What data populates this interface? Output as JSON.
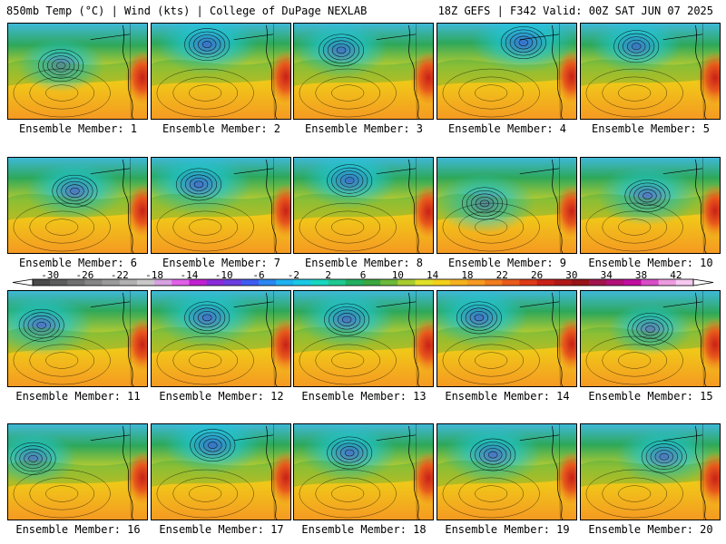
{
  "header": {
    "left": "850mb Temp (°C) | Wind (kts) | College of DuPage NEXLAB",
    "right": "18Z GEFS | F342 Valid: 00Z SAT JUN 07 2025"
  },
  "panels": [
    {
      "label": "Ensemble Member: 1",
      "low": [
        0.38,
        0.44
      ],
      "warm": 0.55,
      "cold": 0.3
    },
    {
      "label": "Ensemble Member: 2",
      "low": [
        0.4,
        0.22
      ],
      "warm": 0.5,
      "cold": 0.55
    },
    {
      "label": "Ensemble Member: 3",
      "low": [
        0.34,
        0.28
      ],
      "warm": 0.6,
      "cold": 0.4
    },
    {
      "label": "Ensemble Member: 4",
      "low": [
        0.62,
        0.2
      ],
      "warm": 0.45,
      "cold": 0.6
    },
    {
      "label": "Ensemble Member: 5",
      "low": [
        0.4,
        0.24
      ],
      "warm": 0.6,
      "cold": 0.35
    },
    {
      "label": "Ensemble Member: 6",
      "low": [
        0.48,
        0.35
      ],
      "warm": 0.45,
      "cold": 0.5
    },
    {
      "label": "Ensemble Member: 7",
      "low": [
        0.34,
        0.28
      ],
      "warm": 0.45,
      "cold": 0.65
    },
    {
      "label": "Ensemble Member: 8",
      "low": [
        0.4,
        0.24
      ],
      "warm": 0.55,
      "cold": 0.45
    },
    {
      "label": "Ensemble Member: 9",
      "low": [
        0.34,
        0.48
      ],
      "warm": 0.5,
      "cold": 0.55
    },
    {
      "label": "Ensemble Member: 10",
      "low": [
        0.48,
        0.4
      ],
      "warm": 0.45,
      "cold": 0.55
    },
    {
      "label": "Ensemble Member: 11",
      "low": [
        0.24,
        0.36
      ],
      "warm": 0.5,
      "cold": 0.6
    },
    {
      "label": "Ensemble Member: 12",
      "low": [
        0.4,
        0.28
      ],
      "warm": 0.55,
      "cold": 0.55
    },
    {
      "label": "Ensemble Member: 13",
      "low": [
        0.38,
        0.3
      ],
      "warm": 0.6,
      "cold": 0.45
    },
    {
      "label": "Ensemble Member: 14",
      "low": [
        0.3,
        0.28
      ],
      "warm": 0.45,
      "cold": 0.5
    },
    {
      "label": "Ensemble Member: 15",
      "low": [
        0.5,
        0.4
      ],
      "warm": 0.5,
      "cold": 0.25
    },
    {
      "label": "Ensemble Member: 16",
      "low": [
        0.18,
        0.36
      ],
      "warm": 0.5,
      "cold": 0.3
    },
    {
      "label": "Ensemble Member: 17",
      "low": [
        0.44,
        0.22
      ],
      "warm": 0.5,
      "cold": 0.5
    },
    {
      "label": "Ensemble Member: 18",
      "low": [
        0.4,
        0.3
      ],
      "warm": 0.55,
      "cold": 0.45
    },
    {
      "label": "Ensemble Member: 19",
      "low": [
        0.4,
        0.32
      ],
      "warm": 0.5,
      "cold": 0.5
    },
    {
      "label": "Ensemble Member: 20",
      "low": [
        0.6,
        0.34
      ],
      "warm": 0.6,
      "cold": 0.45
    }
  ],
  "colorbar": {
    "min": -32,
    "max": 44,
    "step": 2,
    "tick_labels": [
      "-30",
      "-26",
      "-22",
      "-18",
      "-14",
      "-10",
      "-6",
      "-2",
      "2",
      "6",
      "10",
      "14",
      "18",
      "22",
      "26",
      "30",
      "34",
      "38",
      "42"
    ],
    "colors": [
      "#4a4a4a",
      "#5c5c5c",
      "#707070",
      "#858585",
      "#9a9a9a",
      "#b0b0b0",
      "#c8c8c8",
      "#d7a0e0",
      "#e060e8",
      "#c020d0",
      "#8a2ad8",
      "#6a3ee0",
      "#3f5cf0",
      "#2a86f0",
      "#1fb0f0",
      "#19c8e6",
      "#18d6c0",
      "#1ec890",
      "#22b060",
      "#3aa640",
      "#6cb83a",
      "#a8cc30",
      "#e0e028",
      "#f2d018",
      "#f5b01e",
      "#f59a22",
      "#f07c20",
      "#e85a1c",
      "#dc3a18",
      "#c82018",
      "#b01818",
      "#961418",
      "#a0144c",
      "#b01078",
      "#c00ca0",
      "#d84cc8",
      "#ec9ae0",
      "#f6c8f0"
    ]
  }
}
